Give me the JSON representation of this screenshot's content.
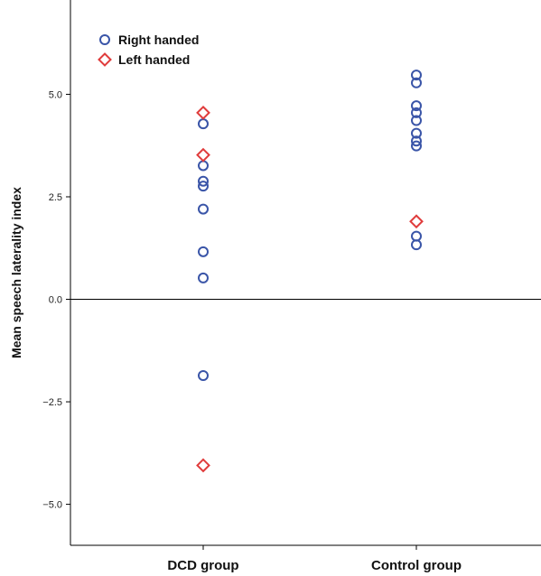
{
  "chart_data": {
    "type": "scatter",
    "ylabel": "Mean speech laterality index",
    "xlabel": "",
    "categories": [
      "DCD group",
      "Control group"
    ],
    "ylim": [
      -6.0,
      7.3
    ],
    "yticks": [
      5.0,
      2.5,
      0.0,
      -2.5,
      -5.0
    ],
    "ytick_labels": [
      "5.0",
      "2.5",
      "0.0",
      "−2.5",
      "−5.0"
    ],
    "reference_line_y": 0.0,
    "grid": false,
    "legend_position": "top-left",
    "series": [
      {
        "name": "Right handed",
        "marker": "circle",
        "color": "#3a55a8",
        "points": [
          {
            "x": "DCD group",
            "y": 4.28
          },
          {
            "x": "DCD group",
            "y": 3.26
          },
          {
            "x": "DCD group",
            "y": 2.88
          },
          {
            "x": "DCD group",
            "y": 2.76
          },
          {
            "x": "DCD group",
            "y": 2.2
          },
          {
            "x": "DCD group",
            "y": 1.16
          },
          {
            "x": "DCD group",
            "y": 0.52
          },
          {
            "x": "DCD group",
            "y": -1.86
          },
          {
            "x": "Control group",
            "y": 5.47
          },
          {
            "x": "Control group",
            "y": 5.28
          },
          {
            "x": "Control group",
            "y": 4.72
          },
          {
            "x": "Control group",
            "y": 4.55
          },
          {
            "x": "Control group",
            "y": 4.36
          },
          {
            "x": "Control group",
            "y": 4.05
          },
          {
            "x": "Control group",
            "y": 3.86
          },
          {
            "x": "Control group",
            "y": 3.74
          },
          {
            "x": "Control group",
            "y": 1.54
          },
          {
            "x": "Control group",
            "y": 1.33
          }
        ]
      },
      {
        "name": "Left handed",
        "marker": "diamond",
        "color": "#e03c3c",
        "points": [
          {
            "x": "DCD group",
            "y": 4.55
          },
          {
            "x": "DCD group",
            "y": 3.52
          },
          {
            "x": "DCD group",
            "y": -4.05
          },
          {
            "x": "Control group",
            "y": 1.9
          }
        ]
      }
    ]
  }
}
